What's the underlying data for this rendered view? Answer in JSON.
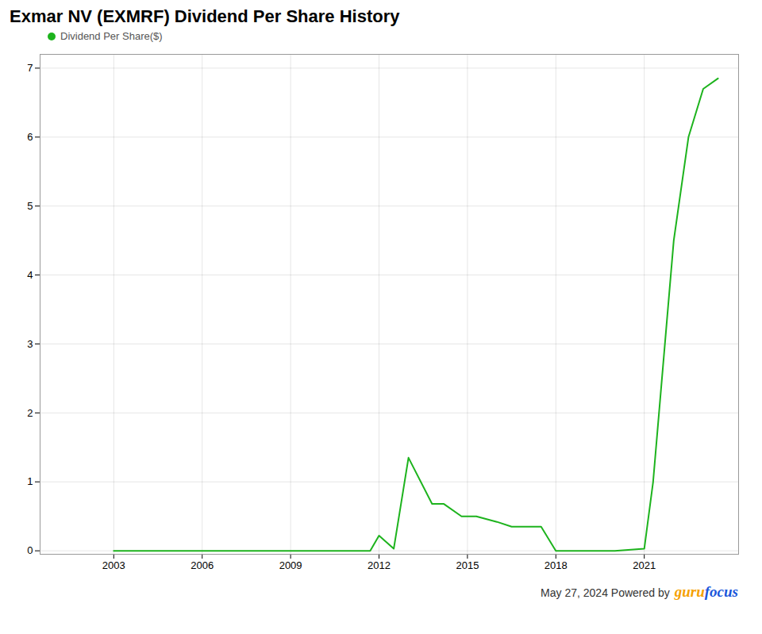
{
  "chart_data": {
    "type": "line",
    "title": "Exmar NV (EXMRF) Dividend Per Share History",
    "x": [
      2003.0,
      2004.0,
      2005.0,
      2006.0,
      2007.0,
      2008.0,
      2009.0,
      2010.0,
      2011.0,
      2011.7,
      2012.0,
      2012.5,
      2013.0,
      2013.8,
      2014.2,
      2014.8,
      2015.3,
      2016.0,
      2016.5,
      2017.0,
      2017.5,
      2018.0,
      2018.5,
      2019.0,
      2020.0,
      2021.0,
      2021.3,
      2022.0,
      2022.5,
      2023.0,
      2023.5
    ],
    "series": [
      {
        "name": "Dividend Per Share($)",
        "color": "#1db31d",
        "values": [
          0.0,
          0.0,
          0.0,
          0.0,
          0.0,
          0.0,
          0.0,
          0.0,
          0.0,
          0.0,
          0.22,
          0.03,
          1.35,
          0.68,
          0.68,
          0.5,
          0.5,
          0.42,
          0.35,
          0.35,
          0.35,
          0.0,
          0.0,
          0.0,
          0.0,
          0.03,
          1.0,
          4.5,
          6.0,
          6.7,
          6.85
        ]
      }
    ],
    "xlim": [
      2000.5,
      2024.2
    ],
    "xticks": [
      2003,
      2006,
      2009,
      2012,
      2015,
      2018,
      2021
    ],
    "ylim": [
      -0.05,
      7.2
    ],
    "yticks": [
      0,
      1,
      2,
      3,
      4,
      5,
      6,
      7
    ],
    "grid": true,
    "legend": "top-left",
    "annotations": [
      {
        "text": "May 27, 2024  Powered by"
      },
      {
        "text": "guru",
        "color": "#f5a100"
      },
      {
        "text": "focus",
        "color": "#1a56db"
      }
    ]
  }
}
